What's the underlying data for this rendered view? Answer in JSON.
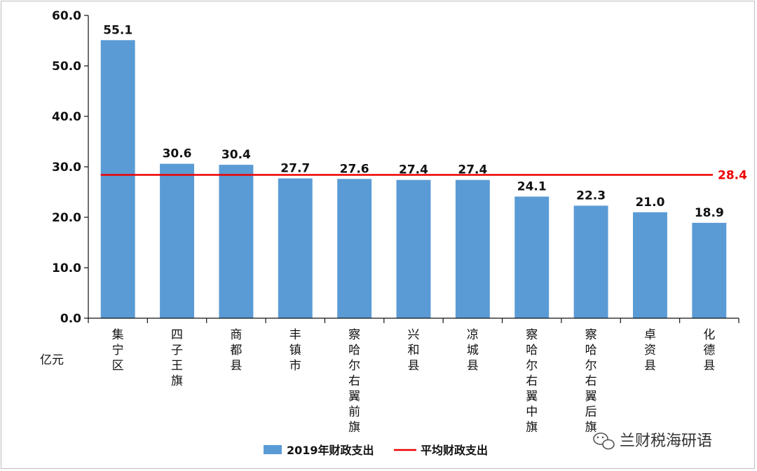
{
  "chart_data": {
    "type": "bar",
    "categories": [
      "集宁区",
      "四子王旗",
      "商都县",
      "丰镇市",
      "察哈尔右翼前旗",
      "兴和县",
      "凉城县",
      "察哈尔右翼中旗",
      "察哈尔右翼后旗",
      "卓资县",
      "化德县"
    ],
    "series": [
      {
        "name": "2019年财政支出",
        "values": [
          55.1,
          30.6,
          30.4,
          27.7,
          27.6,
          27.4,
          27.4,
          24.1,
          22.3,
          21.0,
          18.9
        ],
        "color": "#5b9bd5"
      }
    ],
    "average": {
      "name": "平均财政支出",
      "value": 28.4,
      "label": "28.4",
      "color": "#ee0000"
    },
    "data_labels": [
      "55.1",
      "30.6",
      "30.4",
      "27.7",
      "27.6",
      "27.4",
      "27.4",
      "24.1",
      "22.3",
      "21.0",
      "18.9"
    ],
    "y_ticks": [
      "0.0",
      "10.0",
      "20.0",
      "30.0",
      "40.0",
      "50.0",
      "60.0"
    ],
    "ylim": [
      0,
      60
    ],
    "ylabel": "亿元",
    "title": "",
    "xlabel": "",
    "grid": false,
    "legend_position": "bottom"
  },
  "watermark": {
    "text": "兰财税海研语",
    "icon": "wechat-icon"
  }
}
